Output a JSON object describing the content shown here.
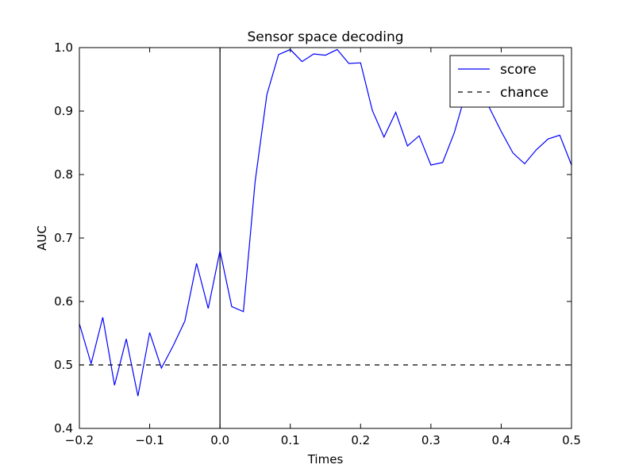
{
  "chart_data": {
    "type": "line",
    "title": "Sensor space decoding",
    "xlabel": "Times",
    "ylabel": "AUC",
    "xlim": [
      -0.2,
      0.5
    ],
    "ylim": [
      0.4,
      1.0
    ],
    "xticks": [
      "−0.2",
      "−0.1",
      "0.0",
      "0.1",
      "0.2",
      "0.3",
      "0.4",
      "0.5"
    ],
    "yticks": [
      "0.4",
      "0.5",
      "0.6",
      "0.7",
      "0.8",
      "0.9",
      "1.0"
    ],
    "grid": false,
    "legend_position": "top-right",
    "colors": {
      "score": "#0000ff",
      "chance": "#000000",
      "vline": "#000000"
    },
    "vline_x": 0.0,
    "series": [
      {
        "name": "score",
        "style": "solid",
        "x": [
          -0.2,
          -0.1833,
          -0.1667,
          -0.15,
          -0.1333,
          -0.1167,
          -0.1,
          -0.0833,
          -0.0667,
          -0.05,
          -0.0333,
          -0.0167,
          0.0,
          0.0167,
          0.0333,
          0.05,
          0.0667,
          0.0833,
          0.1,
          0.1167,
          0.1333,
          0.15,
          0.1667,
          0.1833,
          0.2,
          0.2167,
          0.2333,
          0.25,
          0.2667,
          0.2833,
          0.3,
          0.3167,
          0.3333,
          0.35,
          0.3667,
          0.3833,
          0.4,
          0.4167,
          0.4333,
          0.45,
          0.4667,
          0.4833,
          0.5
        ],
        "values": [
          0.565,
          0.502,
          0.575,
          0.468,
          0.541,
          0.451,
          0.551,
          0.495,
          0.53,
          0.569,
          0.66,
          0.589,
          0.68,
          0.592,
          0.584,
          0.789,
          0.926,
          0.989,
          0.997,
          0.978,
          0.99,
          0.988,
          0.997,
          0.975,
          0.976,
          0.901,
          0.859,
          0.898,
          0.845,
          0.861,
          0.815,
          0.819,
          0.866,
          0.93,
          0.945,
          0.905,
          0.868,
          0.834,
          0.817,
          0.839,
          0.856,
          0.862,
          0.815
        ]
      },
      {
        "name": "chance",
        "style": "dashed",
        "x": [
          -0.2,
          0.5
        ],
        "values": [
          0.5,
          0.5
        ]
      }
    ]
  }
}
